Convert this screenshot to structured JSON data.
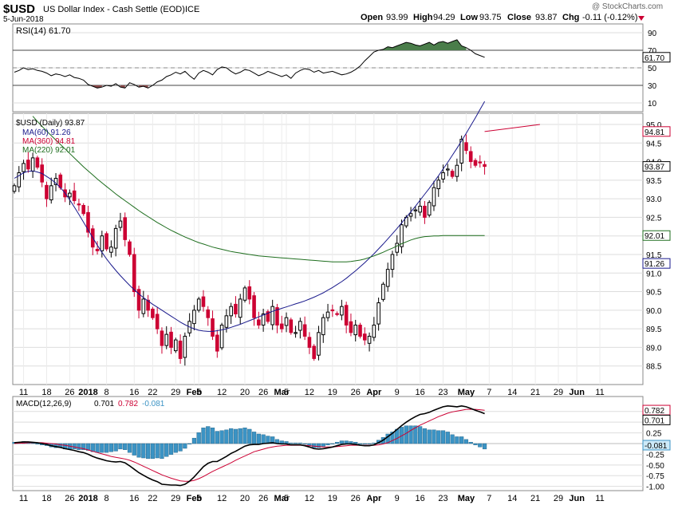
{
  "header": {
    "symbol": "$USD",
    "name": "US Dollar Index - Cash Settle (EOD)",
    "exchange": "ICE",
    "date": "5-Jun-2018",
    "watermark": "@ StockCharts.com",
    "open_label": "Open",
    "open": "93.99",
    "high_label": "High",
    "high": "94.29",
    "low_label": "Low",
    "low": "93.75",
    "close_label": "Close",
    "close": "93.87",
    "chg_label": "Chg",
    "chg": "-0.11 (-0.12%)"
  },
  "colors": {
    "up": "#000000",
    "down": "#cc0033",
    "ma60": "#1a1a8c",
    "ma360": "#cc0033",
    "ma220": "#1e6e1e",
    "rsi_over": "#4a7d4a",
    "rsi_under": "#8c4a4a",
    "hist": "#3b93c4",
    "grid": "#dddddd"
  },
  "chart_data": [
    {
      "type": "line",
      "panel": "rsi",
      "legend": "RSI(14) 61.70",
      "current_label": "61.70",
      "ylim": [
        0,
        100
      ],
      "yticks": [
        "90",
        "70",
        "50",
        "30",
        "10"
      ],
      "levels": [
        70,
        50,
        30
      ],
      "values": [
        45,
        47,
        50,
        48,
        49,
        47,
        46,
        44,
        41,
        43,
        42,
        40,
        42,
        39,
        38,
        36,
        31,
        29,
        27,
        28,
        30,
        29,
        32,
        28,
        27,
        33,
        31,
        28,
        29,
        27,
        30,
        34,
        36,
        40,
        42,
        45,
        43,
        46,
        41,
        37,
        44,
        47,
        45,
        42,
        48,
        51,
        50,
        46,
        43,
        45,
        48,
        47,
        44,
        41,
        43,
        46,
        44,
        42,
        40,
        42,
        38,
        44,
        47,
        49,
        48,
        45,
        47,
        44,
        45,
        46,
        44,
        42,
        43,
        45,
        48,
        52,
        58,
        63,
        68,
        70,
        71,
        74,
        73,
        75,
        77,
        79,
        78,
        76,
        75,
        77,
        79,
        76,
        79,
        80,
        78,
        80,
        82,
        75,
        73,
        70,
        66,
        64,
        62
      ]
    },
    {
      "type": "candlestick",
      "panel": "price",
      "legend": [
        "$USD (Daily) 93.87",
        "MA(60) 91.26",
        "MA(360) 94.81",
        "MA(220) 92.01"
      ],
      "ylim": [
        88.0,
        95.3
      ],
      "yticks": [
        "95.0",
        "94.5",
        "94.0",
        "93.5",
        "93.0",
        "92.5",
        "92.0",
        "91.5",
        "91.0",
        "90.5",
        "90.0",
        "89.5",
        "89.0",
        "88.5"
      ],
      "price_labels": {
        "ma360": "94.81",
        "close": "93.87",
        "ma220": "92.01",
        "ma60": "91.26"
      },
      "closes": [
        93.35,
        93.7,
        93.95,
        93.8,
        94.1,
        93.85,
        93.45,
        93.0,
        93.35,
        93.55,
        93.3,
        93.05,
        93.15,
        92.95,
        92.85,
        92.6,
        92.1,
        91.7,
        91.6,
        92.0,
        91.65,
        91.7,
        92.2,
        92.4,
        91.9,
        91.5,
        90.5,
        90.0,
        90.3,
        90.0,
        89.8,
        89.5,
        89.05,
        89.35,
        89.0,
        89.2,
        88.7,
        89.3,
        89.7,
        90.0,
        90.3,
        90.1,
        89.8,
        89.3,
        88.9,
        89.6,
        89.85,
        90.1,
        89.9,
        90.3,
        90.6,
        90.3,
        89.8,
        89.6,
        89.9,
        89.7,
        90.1,
        89.6,
        89.5,
        89.8,
        89.4,
        89.4,
        89.7,
        89.3,
        89.0,
        88.7,
        89.4,
        89.8,
        89.95,
        90.0,
        89.9,
        90.1,
        89.6,
        89.4,
        89.6,
        89.3,
        89.2,
        89.3,
        89.6,
        90.2,
        90.7,
        91.1,
        91.5,
        91.8,
        92.3,
        92.5,
        92.6,
        92.7,
        92.8,
        92.5,
        92.9,
        93.3,
        93.5,
        93.7,
        93.8,
        93.6,
        93.9,
        94.6,
        94.3,
        94.0,
        93.9,
        93.98,
        93.87
      ],
      "ma60": [
        93.55,
        93.62,
        93.7,
        93.74,
        93.75,
        93.72,
        93.68,
        93.6,
        93.52,
        93.42,
        93.3,
        93.15,
        92.97,
        92.78,
        92.58,
        92.37,
        92.16,
        91.95,
        91.75,
        91.56,
        91.38,
        91.22,
        91.07,
        90.93,
        90.8,
        90.67,
        90.55,
        90.44,
        90.34,
        90.25,
        90.16,
        90.08,
        90.0,
        89.92,
        89.84,
        89.76,
        89.68,
        89.61,
        89.55,
        89.5,
        89.46,
        89.44,
        89.43,
        89.43,
        89.45,
        89.47,
        89.5,
        89.54,
        89.58,
        89.62,
        89.67,
        89.72,
        89.77,
        89.82,
        89.87,
        89.92,
        89.97,
        90.01,
        90.05,
        90.09,
        90.13,
        90.17,
        90.21,
        90.25,
        90.3,
        90.35,
        90.41,
        90.47,
        90.54,
        90.61,
        90.69,
        90.77,
        90.86,
        90.96,
        91.06,
        91.17,
        91.28,
        91.4,
        91.52,
        91.65,
        91.78,
        91.92,
        92.06,
        92.2,
        92.35,
        92.5,
        92.65,
        92.8,
        92.96,
        93.12,
        93.28,
        93.45,
        93.62,
        93.8,
        93.98,
        94.17,
        94.36,
        94.56,
        94.76,
        94.97,
        95.18,
        95.4,
        95.62
      ],
      "ma220": [
        95.8,
        95.65,
        95.5,
        95.36,
        95.22,
        95.08,
        94.95,
        94.82,
        94.7,
        94.58,
        94.46,
        94.34,
        94.22,
        94.1,
        93.98,
        93.86,
        93.75,
        93.64,
        93.53,
        93.43,
        93.33,
        93.23,
        93.13,
        93.04,
        92.95,
        92.86,
        92.77,
        92.68,
        92.6,
        92.52,
        92.44,
        92.36,
        92.29,
        92.22,
        92.15,
        92.09,
        92.03,
        91.97,
        91.92,
        91.87,
        91.82,
        91.78,
        91.74,
        91.7,
        91.67,
        91.64,
        91.61,
        91.58,
        91.56,
        91.54,
        91.52,
        91.5,
        91.48,
        91.46,
        91.45,
        91.44,
        91.43,
        91.42,
        91.41,
        91.4,
        91.39,
        91.38,
        91.37,
        91.36,
        91.35,
        91.34,
        91.33,
        91.32,
        91.31,
        91.3,
        91.3,
        91.3,
        91.3,
        91.31,
        91.33,
        91.35,
        91.38,
        91.42,
        91.46,
        91.51,
        91.56,
        91.62,
        91.67,
        91.73,
        91.79,
        91.84,
        91.89,
        91.93,
        91.96,
        91.98,
        91.99,
        92.0,
        92.0,
        92.01,
        92.01,
        92.01,
        92.01,
        92.01,
        92.01,
        92.01,
        92.01,
        92.01,
        92.01
      ],
      "ma360_start": 95.0,
      "ma360_end": 94.81
    },
    {
      "type": "line",
      "panel": "macd",
      "legend": "MACD(12,26,9) 0.701, 0.782, -0.081",
      "legend_parts": {
        "label": "MACD(12,26,9)",
        "macd": "0.701",
        "signal": "0.782",
        "hist": "-0.081"
      },
      "current_labels": {
        "signal": "0.782",
        "macd": "0.701",
        "hist": "-0.081"
      },
      "ylim": [
        -1.1,
        1.1
      ],
      "yticks": [
        "0.75",
        "0.50",
        "0.25",
        "0.00",
        "-0.25",
        "-0.50",
        "-0.75",
        "-1.00"
      ],
      "macd": [
        0.02,
        0.03,
        0.04,
        0.04,
        0.03,
        0.02,
        0.0,
        -0.02,
        -0.05,
        -0.07,
        -0.09,
        -0.12,
        -0.14,
        -0.16,
        -0.19,
        -0.21,
        -0.25,
        -0.3,
        -0.34,
        -0.37,
        -0.4,
        -0.42,
        -0.43,
        -0.42,
        -0.45,
        -0.52,
        -0.6,
        -0.68,
        -0.74,
        -0.8,
        -0.85,
        -0.89,
        -0.95,
        -0.96,
        -0.97,
        -0.97,
        -0.98,
        -0.95,
        -0.88,
        -0.78,
        -0.66,
        -0.54,
        -0.46,
        -0.42,
        -0.42,
        -0.36,
        -0.3,
        -0.23,
        -0.18,
        -0.12,
        -0.06,
        -0.03,
        -0.02,
        -0.02,
        0.0,
        0.01,
        0.02,
        0.0,
        -0.01,
        -0.01,
        -0.03,
        -0.03,
        -0.03,
        -0.05,
        -0.08,
        -0.12,
        -0.13,
        -0.12,
        -0.1,
        -0.08,
        -0.05,
        -0.02,
        -0.01,
        -0.01,
        -0.02,
        -0.04,
        -0.05,
        -0.05,
        -0.03,
        0.02,
        0.08,
        0.16,
        0.24,
        0.33,
        0.42,
        0.5,
        0.57,
        0.63,
        0.68,
        0.7,
        0.73,
        0.78,
        0.82,
        0.86,
        0.88,
        0.87,
        0.86,
        0.88,
        0.86,
        0.82,
        0.78,
        0.74,
        0.7
      ],
      "signal": [
        0.0,
        0.01,
        0.01,
        0.02,
        0.02,
        0.02,
        0.02,
        0.01,
        0.0,
        -0.01,
        -0.03,
        -0.04,
        -0.06,
        -0.08,
        -0.1,
        -0.12,
        -0.15,
        -0.18,
        -0.21,
        -0.24,
        -0.27,
        -0.3,
        -0.32,
        -0.34,
        -0.36,
        -0.39,
        -0.43,
        -0.48,
        -0.53,
        -0.58,
        -0.63,
        -0.68,
        -0.73,
        -0.77,
        -0.81,
        -0.84,
        -0.87,
        -0.88,
        -0.88,
        -0.86,
        -0.82,
        -0.77,
        -0.71,
        -0.65,
        -0.6,
        -0.55,
        -0.5,
        -0.45,
        -0.39,
        -0.34,
        -0.29,
        -0.24,
        -0.19,
        -0.16,
        -0.13,
        -0.1,
        -0.08,
        -0.06,
        -0.05,
        -0.04,
        -0.04,
        -0.04,
        -0.04,
        -0.04,
        -0.05,
        -0.06,
        -0.07,
        -0.08,
        -0.08,
        -0.08,
        -0.07,
        -0.06,
        -0.05,
        -0.04,
        -0.04,
        -0.04,
        -0.04,
        -0.04,
        -0.04,
        -0.03,
        -0.01,
        0.02,
        0.07,
        0.12,
        0.18,
        0.24,
        0.31,
        0.37,
        0.43,
        0.48,
        0.53,
        0.58,
        0.63,
        0.67,
        0.71,
        0.74,
        0.76,
        0.78,
        0.8,
        0.8,
        0.8,
        0.79,
        0.78
      ]
    }
  ],
  "x_axis": {
    "ticks": [
      {
        "label": "11",
        "i": 2,
        "bold": false
      },
      {
        "label": "18",
        "i": 7,
        "bold": false
      },
      {
        "label": "26",
        "i": 12,
        "bold": false
      },
      {
        "label": "2018",
        "i": 16,
        "bold": true
      },
      {
        "label": "8",
        "i": 20,
        "bold": false
      },
      {
        "label": "16",
        "i": 26,
        "bold": false
      },
      {
        "label": "22",
        "i": 30,
        "bold": false
      },
      {
        "label": "29",
        "i": 35,
        "bold": false
      },
      {
        "label": "Feb",
        "i": 39,
        "bold": true
      },
      {
        "label": "5",
        "i": 40,
        "bold": false
      },
      {
        "label": "12",
        "i": 45,
        "bold": false
      },
      {
        "label": "20",
        "i": 50,
        "bold": false
      },
      {
        "label": "26",
        "i": 54,
        "bold": false
      },
      {
        "label": "Mar",
        "i": 58,
        "bold": true
      },
      {
        "label": "5",
        "i": 59,
        "bold": false
      },
      {
        "label": "12",
        "i": 64,
        "bold": false
      },
      {
        "label": "19",
        "i": 69,
        "bold": false
      },
      {
        "label": "26",
        "i": 74,
        "bold": false
      },
      {
        "label": "Apr",
        "i": 78,
        "bold": true
      },
      {
        "label": "9",
        "i": 83,
        "bold": false
      },
      {
        "label": "16",
        "i": 88,
        "bold": false
      },
      {
        "label": "23",
        "i": 93,
        "bold": false
      },
      {
        "label": "May",
        "i": 98,
        "bold": true
      },
      {
        "label": "7",
        "i": 103,
        "bold": false
      },
      {
        "label": "14",
        "i": 108,
        "bold": false
      },
      {
        "label": "21",
        "i": 113,
        "bold": false
      },
      {
        "label": "29",
        "i": 118,
        "bold": false
      },
      {
        "label": "Jun",
        "i": 122,
        "bold": true
      },
      {
        "label": "11",
        "i": 127,
        "bold": false
      }
    ]
  }
}
